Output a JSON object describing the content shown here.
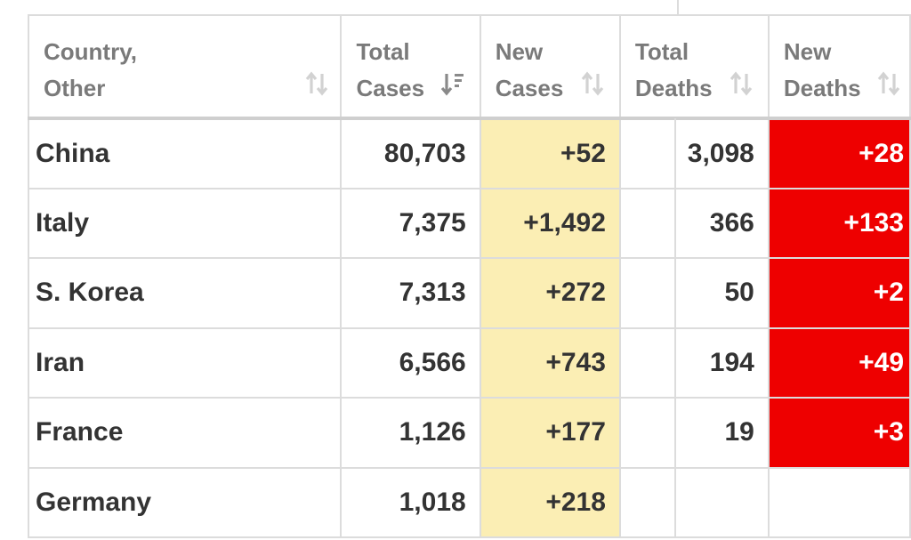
{
  "table": {
    "headers": [
      {
        "key": "country",
        "line1": "Country,",
        "line2": "Other",
        "sort_icon": "sort-icon"
      },
      {
        "key": "total_cases",
        "line1": "Total",
        "line2": "Cases",
        "sort_icon": "sort-desc-icon"
      },
      {
        "key": "new_cases",
        "line1": "New",
        "line2": "Cases",
        "sort_icon": "sort-icon"
      },
      {
        "key": "total_deaths",
        "line1": "Total",
        "line2": "Deaths",
        "sort_icon": "sort-icon"
      },
      {
        "key": "new_deaths",
        "line1": "New",
        "line2": "Deaths",
        "sort_icon": "sort-icon"
      }
    ],
    "rows": [
      {
        "country": "China",
        "total_cases": "80,703",
        "new_cases": "+52",
        "total_deaths": "3,098",
        "new_deaths": "+28"
      },
      {
        "country": "Italy",
        "total_cases": "7,375",
        "new_cases": "+1,492",
        "total_deaths": "366",
        "new_deaths": "+133"
      },
      {
        "country": "S. Korea",
        "total_cases": "7,313",
        "new_cases": "+272",
        "total_deaths": "50",
        "new_deaths": "+2"
      },
      {
        "country": "Iran",
        "total_cases": "6,566",
        "new_cases": "+743",
        "total_deaths": "194",
        "new_deaths": "+49"
      },
      {
        "country": "France",
        "total_cases": "1,126",
        "new_cases": "+177",
        "total_deaths": "19",
        "new_deaths": "+3"
      },
      {
        "country": "Germany",
        "total_cases": "1,018",
        "new_cases": "+218",
        "total_deaths": "",
        "new_deaths": ""
      }
    ]
  },
  "colors": {
    "new_cases_bg": "#fbeeb4",
    "new_deaths_bg": "#ee0000",
    "header_text": "#7a7a7a",
    "cell_text": "#333333",
    "grid": "#dcdcdc"
  }
}
